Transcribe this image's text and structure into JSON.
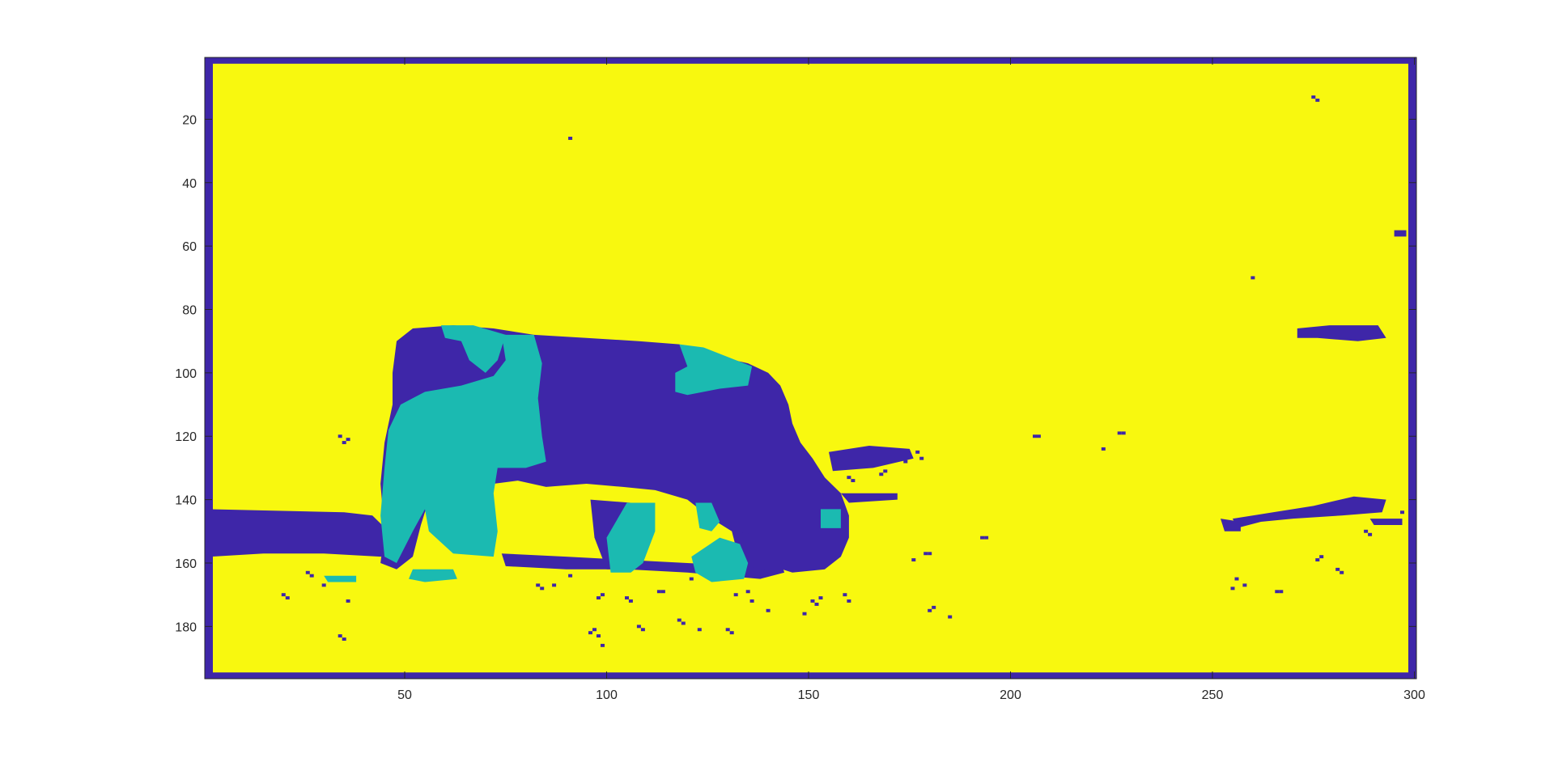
{
  "chart_data": {
    "type": "heatmap",
    "title": "",
    "xlabel": "",
    "ylabel": "",
    "xlim": [
      0.5,
      300.5
    ],
    "ylim": [
      0.5,
      196.5
    ],
    "y_reversed": true,
    "grid": false,
    "colors": {
      "level1": "#3e26a8",
      "level2": "#1bbab1",
      "level3": "#f8f80f",
      "axis": "#262626",
      "background": "#ffffff"
    },
    "x_ticks": [
      {
        "value": 50,
        "label": "50"
      },
      {
        "value": 100,
        "label": "100"
      },
      {
        "value": 150,
        "label": "150"
      },
      {
        "value": 200,
        "label": "200"
      },
      {
        "value": 250,
        "label": "250"
      },
      {
        "value": 300,
        "label": "300"
      }
    ],
    "y_ticks": [
      {
        "value": 20,
        "label": "20"
      },
      {
        "value": 40,
        "label": "40"
      },
      {
        "value": 60,
        "label": "60"
      },
      {
        "value": 80,
        "label": "80"
      },
      {
        "value": 100,
        "label": "100"
      },
      {
        "value": 120,
        "label": "120"
      },
      {
        "value": 140,
        "label": "140"
      },
      {
        "value": 160,
        "label": "160"
      },
      {
        "value": 180,
        "label": "180"
      }
    ],
    "regions": [
      {
        "name": "border-top",
        "level": 1,
        "points": [
          [
            0.5,
            0.5
          ],
          [
            300.5,
            0.5
          ],
          [
            300.5,
            2.5
          ],
          [
            0.5,
            2.5
          ]
        ]
      },
      {
        "name": "border-bottom",
        "level": 1,
        "points": [
          [
            0.5,
            194.5
          ],
          [
            300.5,
            194.5
          ],
          [
            300.5,
            196.5
          ],
          [
            0.5,
            196.5
          ]
        ]
      },
      {
        "name": "border-left",
        "level": 1,
        "points": [
          [
            0.5,
            0.5
          ],
          [
            2.5,
            0.5
          ],
          [
            2.5,
            196.5
          ],
          [
            0.5,
            196.5
          ]
        ]
      },
      {
        "name": "border-right",
        "level": 1,
        "points": [
          [
            298.5,
            0.5
          ],
          [
            300.5,
            0.5
          ],
          [
            300.5,
            196.5
          ],
          [
            298.5,
            196.5
          ]
        ]
      },
      {
        "name": "left-band",
        "level": 1,
        "points": [
          [
            1,
            143
          ],
          [
            35,
            144
          ],
          [
            42,
            145
          ],
          [
            46,
            150
          ],
          [
            48,
            157
          ],
          [
            44,
            158
          ],
          [
            30,
            157
          ],
          [
            15,
            157
          ],
          [
            2,
            158
          ],
          [
            1,
            150
          ]
        ]
      },
      {
        "name": "cow-body",
        "level": 1,
        "points": [
          [
            48,
            90
          ],
          [
            52,
            86
          ],
          [
            62,
            85
          ],
          [
            72,
            86
          ],
          [
            82,
            88
          ],
          [
            95,
            89
          ],
          [
            108,
            90
          ],
          [
            118,
            91
          ],
          [
            122,
            93
          ],
          [
            128,
            95
          ],
          [
            135,
            97
          ],
          [
            140,
            100
          ],
          [
            143,
            104
          ],
          [
            145,
            110
          ],
          [
            146,
            116
          ],
          [
            148,
            122
          ],
          [
            151,
            127
          ],
          [
            154,
            133
          ],
          [
            158,
            138
          ],
          [
            160,
            145
          ],
          [
            160,
            152
          ],
          [
            158,
            158
          ],
          [
            154,
            162
          ],
          [
            146,
            163
          ],
          [
            141,
            161
          ],
          [
            137,
            155
          ],
          [
            131,
            150
          ],
          [
            126,
            146
          ],
          [
            120,
            140
          ],
          [
            112,
            137
          ],
          [
            104,
            136
          ],
          [
            95,
            135
          ],
          [
            85,
            136
          ],
          [
            78,
            134
          ],
          [
            72,
            135
          ],
          [
            66,
            133
          ],
          [
            60,
            135
          ],
          [
            56,
            140
          ],
          [
            54,
            148
          ],
          [
            52,
            158
          ],
          [
            48,
            162
          ],
          [
            44,
            160
          ],
          [
            45,
            150
          ],
          [
            44,
            135
          ],
          [
            45,
            122
          ],
          [
            47,
            110
          ],
          [
            47,
            100
          ]
        ]
      },
      {
        "name": "cow-head-lower",
        "level": 1,
        "points": [
          [
            131,
            150
          ],
          [
            137,
            151
          ],
          [
            142,
            155
          ],
          [
            144,
            163
          ],
          [
            138,
            165
          ],
          [
            133,
            160
          ]
        ]
      },
      {
        "name": "cow-leg-front",
        "level": 1,
        "points": [
          [
            96,
            140
          ],
          [
            106,
            141
          ],
          [
            108,
            152
          ],
          [
            106,
            162
          ],
          [
            100,
            162
          ],
          [
            97,
            152
          ]
        ]
      },
      {
        "name": "ground-strip",
        "level": 1,
        "points": [
          [
            74,
            157
          ],
          [
            90,
            158
          ],
          [
            105,
            159
          ],
          [
            120,
            160
          ],
          [
            135,
            161
          ],
          [
            142,
            163
          ],
          [
            138,
            165
          ],
          [
            120,
            163
          ],
          [
            105,
            162
          ],
          [
            90,
            162
          ],
          [
            75,
            161
          ]
        ]
      },
      {
        "name": "cow-head-spots",
        "level": 1,
        "points": [
          [
            155,
            125
          ],
          [
            165,
            123
          ],
          [
            175,
            124
          ],
          [
            176,
            127
          ],
          [
            166,
            130
          ],
          [
            156,
            131
          ]
        ]
      },
      {
        "name": "cow-nose-spot",
        "level": 1,
        "points": [
          [
            158,
            138
          ],
          [
            172,
            138
          ],
          [
            172,
            140
          ],
          [
            160,
            141
          ]
        ]
      },
      {
        "name": "white-patch-neck",
        "level": 2,
        "points": [
          [
            49,
            110
          ],
          [
            55,
            106
          ],
          [
            64,
            104
          ],
          [
            72,
            101
          ],
          [
            75,
            96
          ],
          [
            74,
            88
          ],
          [
            82,
            88
          ],
          [
            84,
            97
          ],
          [
            83,
            108
          ],
          [
            84,
            120
          ],
          [
            85,
            128
          ],
          [
            80,
            130
          ],
          [
            73,
            130
          ],
          [
            72,
            138
          ],
          [
            73,
            150
          ],
          [
            72,
            158
          ],
          [
            62,
            157
          ],
          [
            56,
            150
          ],
          [
            55,
            143
          ],
          [
            52,
            150
          ],
          [
            48,
            160
          ],
          [
            45,
            158
          ],
          [
            44,
            145
          ],
          [
            45,
            130
          ],
          [
            46,
            118
          ]
        ]
      },
      {
        "name": "white-patch-back",
        "level": 2,
        "points": [
          [
            59,
            85
          ],
          [
            67,
            85
          ],
          [
            75,
            88
          ],
          [
            73,
            96
          ],
          [
            70,
            100
          ],
          [
            66,
            96
          ],
          [
            64,
            90
          ],
          [
            60,
            89
          ]
        ]
      },
      {
        "name": "white-patch-hip",
        "level": 2,
        "points": [
          [
            118,
            91
          ],
          [
            124,
            92
          ],
          [
            130,
            95
          ],
          [
            136,
            98
          ],
          [
            135,
            104
          ],
          [
            128,
            105
          ],
          [
            120,
            107
          ],
          [
            117,
            106
          ],
          [
            117,
            100
          ],
          [
            120,
            98
          ]
        ]
      },
      {
        "name": "white-patch-leg1",
        "level": 2,
        "points": [
          [
            105,
            141
          ],
          [
            112,
            141
          ],
          [
            112,
            150
          ],
          [
            109,
            160
          ],
          [
            106,
            163
          ],
          [
            101,
            163
          ],
          [
            100,
            152
          ]
        ]
      },
      {
        "name": "white-patch-leg2",
        "level": 2,
        "points": [
          [
            121,
            158
          ],
          [
            128,
            152
          ],
          [
            133,
            154
          ],
          [
            135,
            160
          ],
          [
            134,
            165
          ],
          [
            126,
            166
          ],
          [
            122,
            163
          ]
        ]
      },
      {
        "name": "white-patch-leg3",
        "level": 2,
        "points": [
          [
            122,
            141
          ],
          [
            126,
            141
          ],
          [
            128,
            147
          ],
          [
            126,
            150
          ],
          [
            123,
            149
          ]
        ]
      },
      {
        "name": "white-patch-nose",
        "level": 2,
        "points": [
          [
            153,
            143
          ],
          [
            158,
            143
          ],
          [
            158,
            149
          ],
          [
            153,
            149
          ]
        ]
      },
      {
        "name": "white-patch-ground",
        "level": 2,
        "points": [
          [
            52,
            162
          ],
          [
            62,
            162
          ],
          [
            63,
            165
          ],
          [
            55,
            166
          ],
          [
            51,
            165
          ]
        ]
      },
      {
        "name": "white-patch-ground2",
        "level": 2,
        "points": [
          [
            30,
            164
          ],
          [
            38,
            164
          ],
          [
            38,
            166
          ],
          [
            31,
            166
          ]
        ]
      },
      {
        "name": "right-blob-1",
        "level": 1,
        "points": [
          [
            271,
            86
          ],
          [
            279,
            85
          ],
          [
            291,
            85
          ],
          [
            293,
            89
          ],
          [
            286,
            90
          ],
          [
            276,
            89
          ],
          [
            271,
            89
          ]
        ]
      },
      {
        "name": "right-blob-2",
        "level": 1,
        "points": [
          [
            255,
            146
          ],
          [
            265,
            144
          ],
          [
            275,
            142
          ],
          [
            285,
            139
          ],
          [
            293,
            140
          ],
          [
            292,
            144
          ],
          [
            282,
            145
          ],
          [
            270,
            146
          ],
          [
            262,
            147
          ],
          [
            256,
            149
          ]
        ]
      },
      {
        "name": "right-blob-3",
        "level": 1,
        "points": [
          [
            252,
            146
          ],
          [
            257,
            147
          ],
          [
            257,
            150
          ],
          [
            253,
            150
          ]
        ]
      },
      {
        "name": "right-blob-4",
        "level": 1,
        "points": [
          [
            289,
            146
          ],
          [
            297,
            146
          ],
          [
            297,
            148
          ],
          [
            290,
            148
          ]
        ]
      },
      {
        "name": "right-edge-spot",
        "level": 1,
        "points": [
          [
            295,
            55
          ],
          [
            298,
            55
          ],
          [
            298,
            57
          ],
          [
            295,
            57
          ]
        ]
      }
    ],
    "specks": [
      [
        91,
        26
      ],
      [
        275,
        13
      ],
      [
        276,
        14
      ],
      [
        260,
        70
      ],
      [
        206,
        120
      ],
      [
        207,
        120
      ],
      [
        223,
        124
      ],
      [
        34,
        120
      ],
      [
        35,
        122
      ],
      [
        36,
        121
      ],
      [
        177,
        125
      ],
      [
        178,
        127
      ],
      [
        174,
        128
      ],
      [
        193,
        152
      ],
      [
        194,
        152
      ],
      [
        179,
        157
      ],
      [
        180,
        157
      ],
      [
        176,
        159
      ],
      [
        30,
        167
      ],
      [
        36,
        172
      ],
      [
        83,
        167
      ],
      [
        84,
        168
      ],
      [
        87,
        167
      ],
      [
        91,
        164
      ],
      [
        98,
        171
      ],
      [
        99,
        170
      ],
      [
        105,
        171
      ],
      [
        106,
        172
      ],
      [
        113,
        169
      ],
      [
        114,
        169
      ],
      [
        121,
        165
      ],
      [
        132,
        170
      ],
      [
        135,
        169
      ],
      [
        136,
        172
      ],
      [
        140,
        175
      ],
      [
        151,
        172
      ],
      [
        152,
        173
      ],
      [
        153,
        171
      ],
      [
        159,
        170
      ],
      [
        160,
        172
      ],
      [
        160,
        133
      ],
      [
        161,
        134
      ],
      [
        168,
        132
      ],
      [
        169,
        131
      ],
      [
        227,
        119
      ],
      [
        228,
        119
      ],
      [
        255,
        168
      ],
      [
        258,
        167
      ],
      [
        276,
        159
      ],
      [
        277,
        158
      ],
      [
        288,
        150
      ],
      [
        289,
        151
      ],
      [
        297,
        144
      ],
      [
        256,
        165
      ],
      [
        266,
        169
      ],
      [
        267,
        169
      ],
      [
        281,
        162
      ],
      [
        282,
        163
      ],
      [
        96,
        182
      ],
      [
        97,
        181
      ],
      [
        98,
        183
      ],
      [
        34,
        183
      ],
      [
        35,
        184
      ],
      [
        99,
        186
      ],
      [
        180,
        175
      ],
      [
        181,
        174
      ],
      [
        185,
        177
      ],
      [
        149,
        176
      ],
      [
        118,
        178
      ],
      [
        119,
        179
      ],
      [
        108,
        180
      ],
      [
        109,
        181
      ],
      [
        123,
        181
      ],
      [
        130,
        181
      ],
      [
        131,
        182
      ],
      [
        20,
        170
      ],
      [
        21,
        171
      ],
      [
        26,
        163
      ],
      [
        27,
        164
      ]
    ]
  }
}
